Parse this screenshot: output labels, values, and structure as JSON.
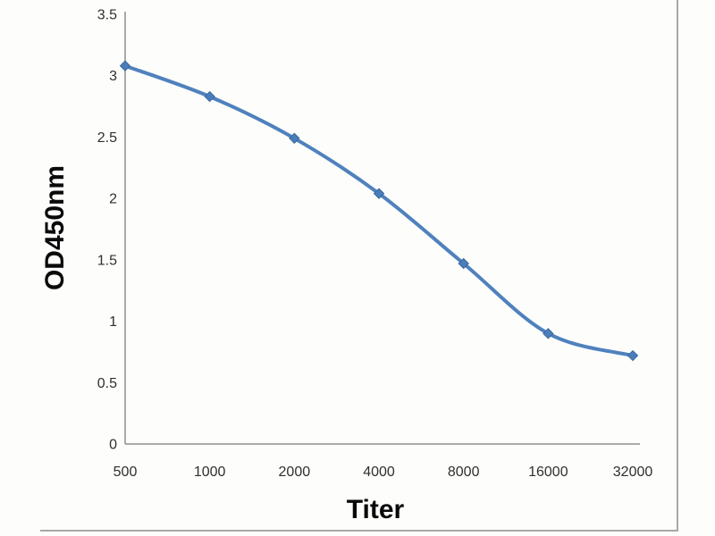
{
  "chart_data": {
    "type": "line",
    "title": "",
    "xlabel": "Titer",
    "ylabel": "OD450nm",
    "categories": [
      "500",
      "1000",
      "2000",
      "4000",
      "8000",
      "16000",
      "32000"
    ],
    "series": [
      {
        "name": "OD450nm",
        "values": [
          3.08,
          2.83,
          2.49,
          2.04,
          1.47,
          0.9,
          0.72
        ]
      }
    ],
    "ylim": [
      0,
      3.5
    ],
    "yticks": [
      "0",
      "0.5",
      "1",
      "1.5",
      "2",
      "2.5",
      "3",
      "3.5"
    ],
    "grid": false,
    "legend": "none",
    "marker": "diamond",
    "line_smooth": true,
    "colors": {
      "line": "#4f81bd",
      "marker_fill": "#4a7ebb",
      "marker_edge": "#3a679c",
      "axis": "#8f8f8f",
      "tick_label": "#2f2f2f",
      "axis_title": "#0a0a0a",
      "frame_border": "#a8a8a8",
      "background": "#fdfdfb"
    }
  }
}
